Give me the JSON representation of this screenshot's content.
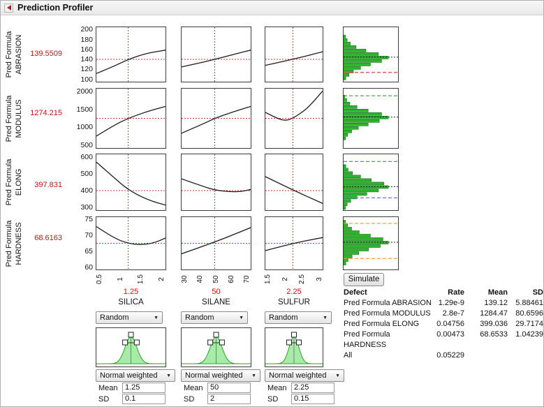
{
  "window": {
    "title": "Prediction Profiler"
  },
  "chart_data": {
    "type": "profiler",
    "responses": [
      {
        "label_prefix": "Pred Formula",
        "name": "ABRASION",
        "current_value": "139.5509",
        "yticks": [
          "200",
          "180",
          "160",
          "140",
          "120",
          "100"
        ],
        "crosshair_y": 0.41,
        "curves": [
          [
            [
              0,
              0.15
            ],
            [
              0.25,
              0.28
            ],
            [
              0.46,
              0.41
            ],
            [
              0.72,
              0.52
            ],
            [
              1,
              0.58
            ]
          ],
          [
            [
              0,
              0.27
            ],
            [
              0.25,
              0.34
            ],
            [
              0.48,
              0.41
            ],
            [
              0.75,
              0.5
            ],
            [
              1,
              0.58
            ]
          ],
          [
            [
              0,
              0.3
            ],
            [
              0.48,
              0.41
            ],
            [
              1,
              0.55
            ]
          ]
        ],
        "sim_histogram": {
          "bars": [
            0.04,
            0.08,
            0.15,
            0.28,
            0.5,
            0.78,
            1.0,
            0.85,
            0.6,
            0.38,
            0.22,
            0.12,
            0.05
          ],
          "mean_line": 0.45,
          "limit_lines": [
            {
              "color": "#e04040",
              "pos": 0.17
            }
          ]
        }
      },
      {
        "label_prefix": "Pred Formula",
        "name": "MODULUS",
        "current_value": "1274.215",
        "yticks": [
          "2000",
          "1500",
          "1000",
          "500"
        ],
        "crosshair_y": 0.5,
        "curves": [
          [
            [
              0,
              0.2
            ],
            [
              0.25,
              0.38
            ],
            [
              0.46,
              0.5
            ],
            [
              0.72,
              0.61
            ],
            [
              1,
              0.7
            ]
          ],
          [
            [
              0,
              0.25
            ],
            [
              0.3,
              0.4
            ],
            [
              0.48,
              0.5
            ],
            [
              0.75,
              0.61
            ],
            [
              1,
              0.7
            ]
          ],
          [
            [
              0,
              0.6
            ],
            [
              0.2,
              0.5
            ],
            [
              0.35,
              0.46
            ],
            [
              0.48,
              0.5
            ],
            [
              0.7,
              0.64
            ],
            [
              0.85,
              0.79
            ],
            [
              1,
              0.96
            ]
          ]
        ],
        "sim_histogram": {
          "bars": [
            0.03,
            0.07,
            0.14,
            0.3,
            0.55,
            0.85,
            1.0,
            0.8,
            0.55,
            0.33,
            0.18,
            0.09,
            0.04
          ],
          "mean_line": 0.52,
          "limit_lines": [
            {
              "color": "#35a035",
              "pos": 0.88
            }
          ]
        }
      },
      {
        "label_prefix": "Pred Formula",
        "name": "ELONG",
        "current_value": "397.831",
        "yticks": [
          "600",
          "500",
          "400",
          "300"
        ],
        "crosshair_y": 0.35,
        "curves": [
          [
            [
              0,
              0.86
            ],
            [
              0.22,
              0.62
            ],
            [
              0.46,
              0.36
            ],
            [
              0.75,
              0.18
            ],
            [
              1,
              0.09
            ]
          ],
          [
            [
              0,
              0.56
            ],
            [
              0.3,
              0.43
            ],
            [
              0.48,
              0.36
            ],
            [
              0.68,
              0.33
            ],
            [
              0.85,
              0.33
            ],
            [
              1,
              0.37
            ]
          ],
          [
            [
              0,
              0.6
            ],
            [
              0.48,
              0.36
            ],
            [
              1,
              0.12
            ]
          ]
        ],
        "sim_histogram": {
          "bars": [
            0.05,
            0.1,
            0.2,
            0.38,
            0.62,
            0.9,
            1.0,
            0.78,
            0.52,
            0.3,
            0.16,
            0.08,
            0.04
          ],
          "mean_line": 0.42,
          "limit_lines": [
            {
              "color": "#6a79e0",
              "pos": 0.87
            },
            {
              "color": "#6a79e0",
              "pos": 0.22
            }
          ]
        }
      },
      {
        "label_prefix": "Pred Formula",
        "name": "HARDNESS",
        "current_value": "68.6163",
        "yticks": [
          "75",
          "70",
          "65",
          "60"
        ],
        "crosshair_y": 0.5,
        "curves": [
          [
            [
              0,
              0.82
            ],
            [
              0.25,
              0.6
            ],
            [
              0.46,
              0.5
            ],
            [
              0.62,
              0.47
            ],
            [
              0.82,
              0.5
            ],
            [
              1,
              0.6
            ]
          ],
          [
            [
              0,
              0.3
            ],
            [
              0.48,
              0.52
            ],
            [
              1,
              0.8
            ]
          ],
          [
            [
              0,
              0.36
            ],
            [
              0.48,
              0.5
            ],
            [
              1,
              0.61
            ]
          ]
        ],
        "sim_histogram": {
          "bars": [
            0.04,
            0.09,
            0.18,
            0.35,
            0.6,
            0.88,
            1.0,
            0.82,
            0.56,
            0.34,
            0.19,
            0.1,
            0.05
          ],
          "mean_line": 0.52,
          "limit_lines": [
            {
              "color": "#eda43e",
              "pos": 0.88
            },
            {
              "color": "#eda43e",
              "pos": 0.21
            }
          ]
        }
      }
    ],
    "factors": [
      {
        "name": "SILICA",
        "current_value": "1.25",
        "xticks": [
          "0.5",
          "1",
          "1.5",
          "2"
        ],
        "crosshair_x": 0.46,
        "sampling": "Random",
        "weighting": "Normal weighted",
        "mean_label": "Mean",
        "sd_label": "SD",
        "mean": "1.25",
        "sd": "0.1"
      },
      {
        "name": "SILANE",
        "current_value": "50",
        "xticks": [
          "30",
          "40",
          "50",
          "60",
          "70"
        ],
        "crosshair_x": 0.48,
        "sampling": "Random",
        "weighting": "Normal weighted",
        "mean_label": "Mean",
        "sd_label": "SD",
        "mean": "50",
        "sd": "2"
      },
      {
        "name": "SULFUR",
        "current_value": "2.25",
        "xticks": [
          "1.5",
          "2",
          "2.5",
          "3"
        ],
        "crosshair_x": 0.48,
        "sampling": "Random",
        "weighting": "Normal weighted",
        "mean_label": "Mean",
        "sd_label": "SD",
        "mean": "2.25",
        "sd": "0.15"
      }
    ]
  },
  "simulate": {
    "label": "Simulate"
  },
  "defect_table": {
    "headers": [
      "Defect",
      "Rate",
      "Mean",
      "SD"
    ],
    "rows": [
      {
        "name": "Pred Formula ABRASION",
        "rate": "1.29e-9",
        "mean": "139.12",
        "sd": "5.88461"
      },
      {
        "name": "Pred Formula MODULUS",
        "rate": "2.8e-7",
        "mean": "1284.47",
        "sd": "80.6596"
      },
      {
        "name": "Pred Formula ELONG",
        "rate": "0.04756",
        "mean": "399.036",
        "sd": "29.7174"
      },
      {
        "name": "Pred Formula HARDNESS",
        "rate": "0.00473",
        "mean": "68.6533",
        "sd": "1.04239"
      },
      {
        "name": "All",
        "rate": "0.05229",
        "mean": "",
        "sd": ""
      }
    ]
  }
}
